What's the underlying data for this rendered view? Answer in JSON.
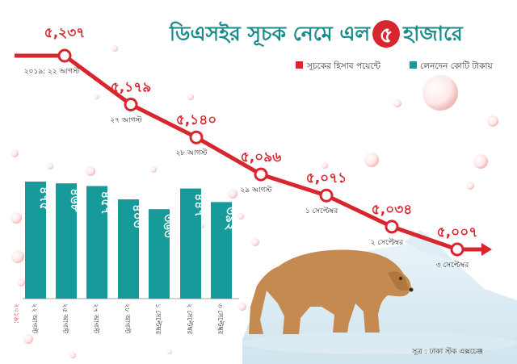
{
  "title": {
    "before": "ডিএসইর সূচক নেমে এল",
    "badge": "৫",
    "after": "হাজারে"
  },
  "legend": {
    "index_label": "সূচকের হিসাব পয়েন্টে",
    "turnover_label": "লেনদেন কোটি টাকায়"
  },
  "source": "সূত্র : ঢাকা স্টক এক্সচেঞ্জ",
  "colors": {
    "accent_red": "#d7262e",
    "teal": "#179a9a",
    "title_teal": "#1a8a8a",
    "bear": "#c58a50"
  },
  "chart_data": [
    {
      "type": "line",
      "year_label": "২০১৯:",
      "categories": [
        "২২ আগস্ট",
        "২৭ আগস্ট",
        "২৮ আগস্ট",
        "২৯ আগস্ট",
        "১ সেপ্টেম্বর",
        "২ সেপ্টেম্বর",
        "৩ সেপ্টেম্বর"
      ],
      "values": [
        5237,
        5179,
        5140,
        5096,
        5071,
        5034,
        5007
      ],
      "value_labels": [
        "৫,২৩৭",
        "৫,১৭৯",
        "৫,১৪০",
        "৫,০৯৬",
        "৫,০৭১",
        "৫,০৩৪",
        "৫,০০৭"
      ],
      "date_labels": [
        "২০১৯: ২২ আগস্ট",
        "২৭ আগস্ট",
        "২৮ আগস্ট",
        "২৯ আগস্ট",
        "১ সেপ্টেম্বর",
        "২ সেপ্টেম্বর",
        "৩ সেপ্টেম্বর"
      ],
      "series_name": "সূচকের হিসাব পয়েন্টে"
    },
    {
      "type": "bar",
      "year_label": "২০১৯:",
      "categories": [
        "২২ আগস্ট",
        "২৫ আগস্ট",
        "২৭ আগস্ট",
        "২৮ আগস্ট",
        "১ সেপ্টেম্বর",
        "২ সেপ্টেম্বর",
        "৩ সেপ্টেম্বর"
      ],
      "values": [
        475,
        468,
        457,
        403,
        363,
        447,
        392
      ],
      "value_labels": [
        "৪৭৫",
        "৪৬৮",
        "৪৫৭",
        "৪০৩",
        "৩৬৩",
        "৪৪৭",
        "৩৯২"
      ],
      "series_name": "লেনদেন কোটি টাকায়",
      "ylim": [
        0,
        500
      ]
    }
  ]
}
